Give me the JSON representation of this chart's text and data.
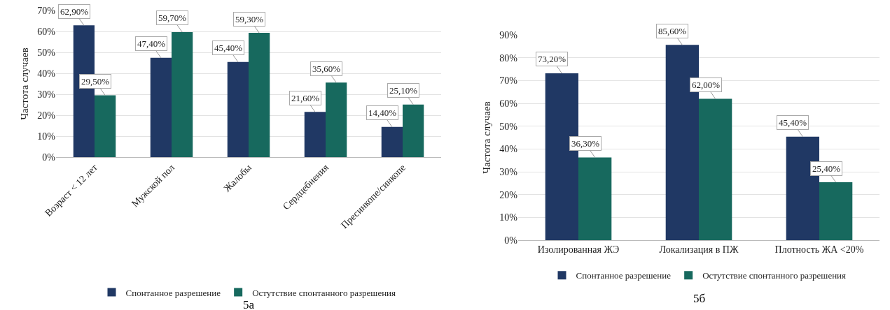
{
  "chart_data": [
    {
      "type": "bar",
      "ylabel": "Частота случаев",
      "categories": [
        "Возраст < 12 лет",
        "Мужской пол",
        "Жалобы",
        "Сердцебиения",
        "Пресинкопе/синкопе"
      ],
      "series": [
        {
          "name": "Спонтанное разрешение",
          "color": "#203864",
          "values": [
            62.9,
            47.4,
            45.4,
            21.6,
            14.4
          ],
          "value_labels": [
            "62,90%",
            "47,40%",
            "45,40%",
            "21,60%",
            "14,40%"
          ]
        },
        {
          "name": "Остутствие спонтанного разрешения",
          "color": "#17695e",
          "values": [
            29.5,
            59.7,
            59.3,
            35.6,
            25.1
          ],
          "value_labels": [
            "29,50%",
            "59,70%",
            "59,30%",
            "35,60%",
            "25,10%"
          ]
        }
      ],
      "ylim": [
        0,
        70
      ],
      "yticks": [
        {
          "value": 0,
          "label": "0%"
        },
        {
          "value": 10,
          "label": "10%"
        },
        {
          "value": 20,
          "label": "20%"
        },
        {
          "value": 30,
          "label": "30%"
        },
        {
          "value": 40,
          "label": "40%"
        },
        {
          "value": 50,
          "label": "50%"
        },
        {
          "value": 60,
          "label": "60%"
        },
        {
          "value": 70,
          "label": "70%"
        }
      ],
      "grid": "y",
      "legend": "bottom",
      "annotations": [
        "5а"
      ]
    },
    {
      "type": "bar",
      "ylabel": "Частота случаев",
      "categories": [
        "Изолированная ЖЭ",
        "Локализация в ПЖ",
        "Плотность ЖА <20%"
      ],
      "series": [
        {
          "name": "Спонтанное разрешение",
          "color": "#203864",
          "values": [
            73.2,
            85.6,
            45.4
          ],
          "value_labels": [
            "73,20%",
            "85,60%",
            "45,40%"
          ]
        },
        {
          "name": "Остутствие спонтанного разрешения",
          "color": "#17695e",
          "values": [
            36.3,
            62.0,
            25.4
          ],
          "value_labels": [
            "36,30%",
            "62,00%",
            "25,40%"
          ]
        }
      ],
      "ylim": [
        0,
        90
      ],
      "yticks": [
        {
          "value": 0,
          "label": "0%"
        },
        {
          "value": 10,
          "label": "10%"
        },
        {
          "value": 20,
          "label": "20%"
        },
        {
          "value": 30,
          "label": "30%"
        },
        {
          "value": 40,
          "label": "40%"
        },
        {
          "value": 50,
          "label": "50%"
        },
        {
          "value": 60,
          "label": "60%"
        },
        {
          "value": 70,
          "label": "70%"
        },
        {
          "value": 80,
          "label": "80%"
        },
        {
          "value": 90,
          "label": "90%"
        }
      ],
      "grid": "y",
      "legend": "bottom",
      "annotations": [
        "5б"
      ]
    }
  ]
}
